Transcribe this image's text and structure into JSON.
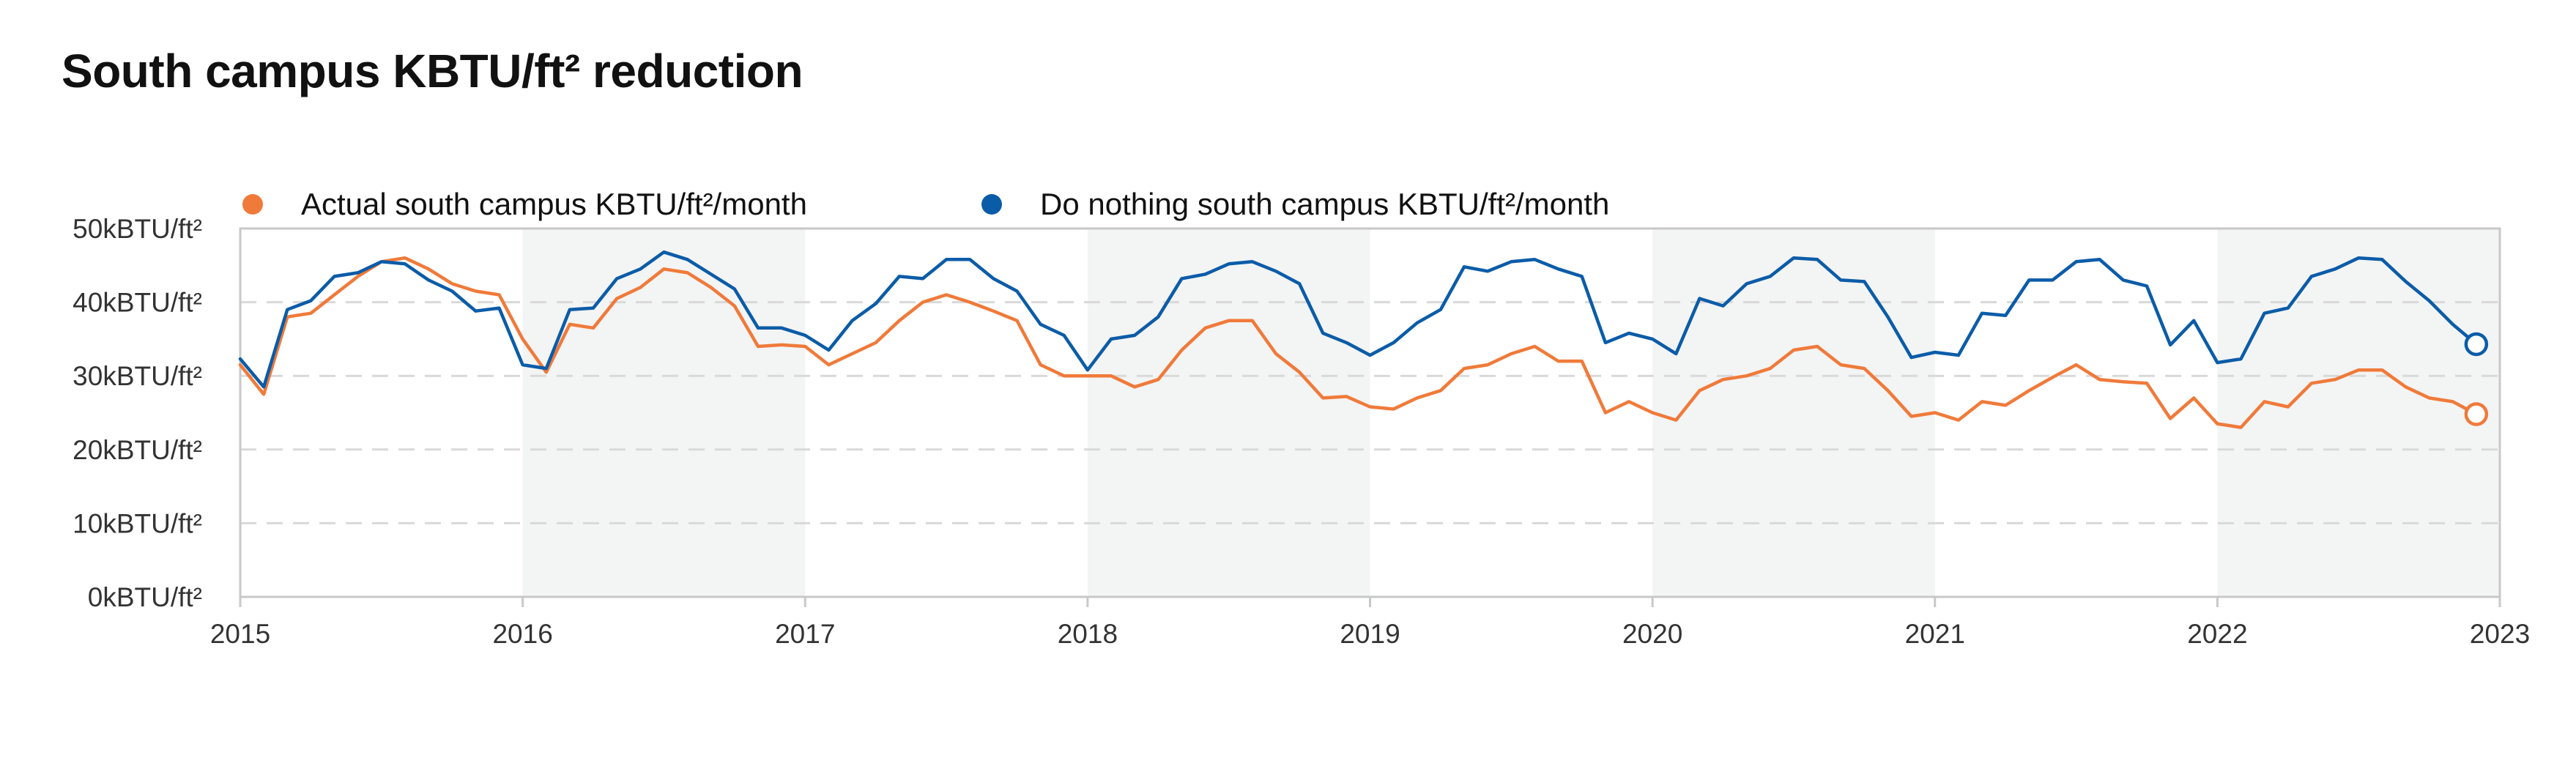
{
  "chart_data": {
    "type": "line",
    "title": "South campus KBTU/ft² reduction",
    "xlabel": "",
    "ylabel": "",
    "x_start": "2015-01",
    "x_end": "2022-12",
    "xlim": [
      "2015-01",
      "2023-01"
    ],
    "ylim": [
      0,
      50
    ],
    "x_ticks": [
      "2015",
      "2016",
      "2017",
      "2018",
      "2019",
      "2020",
      "2021",
      "2022",
      "2023"
    ],
    "y_ticks": [
      "0kBTU/ft²",
      "10kBTU/ft²",
      "20kBTU/ft²",
      "30kBTU/ft²",
      "40kBTU/ft²",
      "50kBTU/ft²"
    ],
    "grid": true,
    "legend_position": "top-left",
    "shaded_years": [
      "2016",
      "2018",
      "2020",
      "2022"
    ],
    "series": [
      {
        "name": "Actual south campus KBTU/ft²/month",
        "color": "#f07a3a",
        "values": [
          31.5,
          27.5,
          38,
          38.5,
          41,
          43.5,
          45.5,
          46,
          44.5,
          42.5,
          41.5,
          41,
          35,
          30.5,
          37,
          36.5,
          40.5,
          42,
          44.5,
          44,
          42,
          39.5,
          34,
          34.2,
          34,
          31.5,
          33,
          34.5,
          37.5,
          40,
          41,
          40,
          38.8,
          37.5,
          31.5,
          30,
          30,
          30,
          28.5,
          29.5,
          33.5,
          36.5,
          37.5,
          37.5,
          33,
          30.5,
          27,
          27.2,
          25.8,
          25.5,
          27,
          28,
          31,
          31.5,
          33,
          34,
          32,
          32,
          25,
          26.5,
          25,
          24,
          28,
          29.5,
          30,
          31,
          33.5,
          34,
          31.5,
          31,
          28,
          24.5,
          25,
          24,
          26.5,
          26,
          28,
          29.8,
          31.5,
          29.5,
          29.2,
          29,
          24.2,
          27,
          23.5,
          23,
          26.5,
          25.8,
          29,
          29.5,
          30.8,
          30.8,
          28.5,
          27,
          26.5,
          24.8
        ]
      },
      {
        "name": "Do nothing south campus KBTU/ft²/month",
        "color": "#0b5ca8",
        "values": [
          32.3,
          28.5,
          39,
          40.2,
          43.5,
          44,
          45.5,
          45.2,
          43,
          41.5,
          38.8,
          39.2,
          31.5,
          31,
          39,
          39.2,
          43.2,
          44.5,
          46.8,
          45.8,
          43.8,
          41.8,
          36.5,
          36.5,
          35.5,
          33.5,
          37.5,
          39.8,
          43.5,
          43.2,
          45.8,
          45.8,
          43.2,
          41.5,
          37,
          35.5,
          30.8,
          35,
          35.5,
          38,
          43.2,
          43.8,
          45.2,
          45.5,
          44.2,
          42.5,
          35.8,
          34.5,
          32.8,
          34.5,
          37.2,
          39,
          44.8,
          44.2,
          45.5,
          45.8,
          44.5,
          43.5,
          34.5,
          35.8,
          35,
          33,
          40.5,
          39.5,
          42.5,
          43.5,
          46,
          45.8,
          43,
          42.8,
          38,
          32.5,
          33.2,
          32.8,
          38.5,
          38.2,
          43,
          43,
          45.5,
          45.8,
          43,
          42.2,
          34.2,
          37.5,
          31.8,
          32.3,
          38.5,
          39.2,
          43.5,
          44.5,
          46,
          45.8,
          42.8,
          40.2,
          37,
          34.3
        ]
      }
    ]
  }
}
